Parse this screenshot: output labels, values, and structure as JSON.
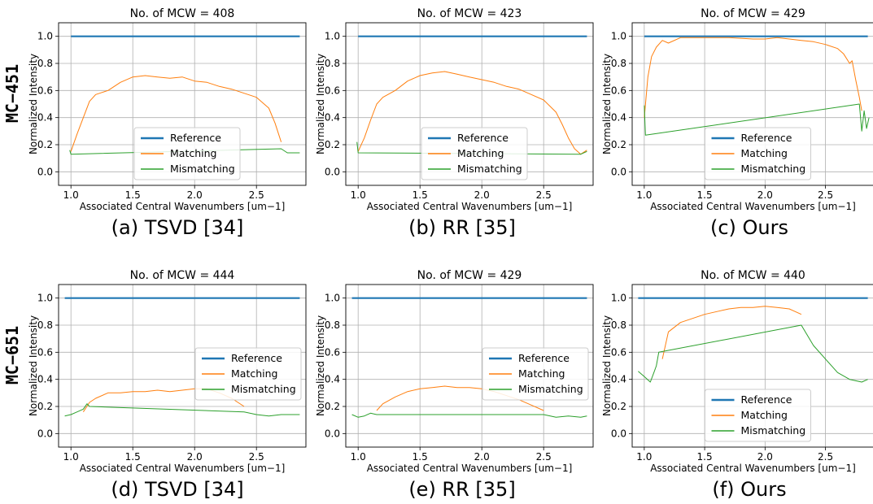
{
  "row_labels": [
    "MC−451",
    "MC−651"
  ],
  "captions": [
    "(a) TSVD [34]",
    "(b) RR [35]",
    "(c) Ours",
    "(d) TSVD [34]",
    "(e) RR [35]",
    "(f) Ours"
  ],
  "colors": {
    "reference": "#1f77b4",
    "matching": "#ff7f0e",
    "mismatching": "#2ca02c",
    "grid": "#b0b0b0"
  },
  "chart_data": [
    {
      "type": "line",
      "title": "No. of MCW = 408",
      "xlabel": "Associated Central Wavenumbers [um−1]",
      "ylabel": "Normalized Intensity",
      "xlim": [
        0.9,
        2.9
      ],
      "ylim": [
        -0.1,
        1.1
      ],
      "xticks": [
        "1.0",
        "1.5",
        "2.0",
        "2.5"
      ],
      "yticks": [
        "0.0",
        "0.2",
        "0.4",
        "0.6",
        "0.8",
        "1.0"
      ],
      "grid": true,
      "legend_position": "lower-center",
      "series": [
        {
          "name": "Reference",
          "x": [
            1.0,
            2.85
          ],
          "y": [
            1.0,
            1.0
          ]
        },
        {
          "name": "Matching",
          "x": [
            1.0,
            1.05,
            1.1,
            1.15,
            1.2,
            1.3,
            1.4,
            1.5,
            1.6,
            1.7,
            1.8,
            1.9,
            2.0,
            2.1,
            2.2,
            2.3,
            2.4,
            2.5,
            2.6,
            2.65,
            2.7
          ],
          "y": [
            0.15,
            0.28,
            0.4,
            0.52,
            0.57,
            0.6,
            0.66,
            0.7,
            0.71,
            0.7,
            0.69,
            0.7,
            0.67,
            0.66,
            0.63,
            0.61,
            0.58,
            0.55,
            0.47,
            0.36,
            0.22
          ]
        },
        {
          "name": "Mismatching",
          "x": [
            0.99,
            1.0,
            2.7,
            2.75,
            2.8,
            2.85
          ],
          "y": [
            0.16,
            0.13,
            0.17,
            0.14,
            0.14,
            0.14
          ]
        }
      ]
    },
    {
      "type": "line",
      "title": "No. of MCW = 423",
      "xlabel": "Associated Central Wavenumbers [um−1]",
      "ylabel": "Normalized Intensity",
      "xlim": [
        0.9,
        2.9
      ],
      "ylim": [
        -0.1,
        1.1
      ],
      "xticks": [
        "1.0",
        "1.5",
        "2.0",
        "2.5"
      ],
      "yticks": [
        "0.0",
        "0.2",
        "0.4",
        "0.6",
        "0.8",
        "1.0"
      ],
      "grid": true,
      "legend_position": "lower-center",
      "series": [
        {
          "name": "Reference",
          "x": [
            1.0,
            2.85
          ],
          "y": [
            1.0,
            1.0
          ]
        },
        {
          "name": "Matching",
          "x": [
            1.0,
            1.05,
            1.1,
            1.15,
            1.2,
            1.3,
            1.4,
            1.5,
            1.6,
            1.7,
            1.8,
            1.9,
            2.0,
            2.1,
            2.2,
            2.3,
            2.4,
            2.5,
            2.6,
            2.65,
            2.7,
            2.75,
            2.8,
            2.85
          ],
          "y": [
            0.15,
            0.25,
            0.38,
            0.5,
            0.55,
            0.6,
            0.67,
            0.71,
            0.73,
            0.74,
            0.72,
            0.7,
            0.68,
            0.66,
            0.63,
            0.61,
            0.57,
            0.53,
            0.44,
            0.35,
            0.25,
            0.17,
            0.13,
            0.16
          ]
        },
        {
          "name": "Mismatching",
          "x": [
            0.99,
            1.0,
            2.8,
            2.85
          ],
          "y": [
            0.22,
            0.14,
            0.13,
            0.15
          ]
        }
      ]
    },
    {
      "type": "line",
      "title": "No. of MCW = 429",
      "xlabel": "Associated Central Wavenumbers [um−1]",
      "ylabel": "Normalized Intensity",
      "xlim": [
        0.9,
        2.9
      ],
      "ylim": [
        -0.1,
        1.1
      ],
      "xticks": [
        "1.0",
        "1.5",
        "2.0",
        "2.5"
      ],
      "yticks": [
        "0.0",
        "0.2",
        "0.4",
        "0.6",
        "0.8",
        "1.0"
      ],
      "grid": true,
      "legend_position": "lower-center",
      "series": [
        {
          "name": "Reference",
          "x": [
            1.0,
            2.85
          ],
          "y": [
            1.0,
            1.0
          ]
        },
        {
          "name": "Matching",
          "x": [
            1.0,
            1.03,
            1.06,
            1.1,
            1.15,
            1.2,
            1.3,
            1.5,
            1.7,
            1.9,
            2.0,
            2.1,
            2.2,
            2.3,
            2.4,
            2.5,
            2.6,
            2.65,
            2.7,
            2.72,
            2.75,
            2.78,
            2.8
          ],
          "y": [
            0.4,
            0.7,
            0.85,
            0.92,
            0.97,
            0.95,
            0.99,
            0.99,
            0.99,
            0.98,
            0.98,
            0.99,
            0.98,
            0.97,
            0.96,
            0.94,
            0.91,
            0.87,
            0.8,
            0.82,
            0.68,
            0.55,
            0.45
          ]
        },
        {
          "name": "Mismatching",
          "x": [
            1.0,
            1.01,
            2.78,
            2.8,
            2.82,
            2.84,
            2.86
          ],
          "y": [
            0.49,
            0.27,
            0.5,
            0.3,
            0.45,
            0.32,
            0.4
          ]
        }
      ]
    },
    {
      "type": "line",
      "title": "No. of MCW = 444",
      "xlabel": "Associated Central Wavenumbers [um−1]",
      "ylabel": "Normalized Intensity",
      "xlim": [
        0.9,
        2.9
      ],
      "ylim": [
        -0.1,
        1.1
      ],
      "xticks": [
        "1.0",
        "1.5",
        "2.0",
        "2.5"
      ],
      "yticks": [
        "0.0",
        "0.2",
        "0.4",
        "0.6",
        "0.8",
        "1.0"
      ],
      "grid": true,
      "legend_position": "center-right",
      "series": [
        {
          "name": "Reference",
          "x": [
            0.95,
            2.85
          ],
          "y": [
            1.0,
            1.0
          ]
        },
        {
          "name": "Matching",
          "x": [
            1.1,
            1.15,
            1.2,
            1.3,
            1.4,
            1.5,
            1.6,
            1.7,
            1.8,
            1.9,
            2.0,
            2.1,
            2.2,
            2.3,
            2.4
          ],
          "y": [
            0.16,
            0.23,
            0.26,
            0.3,
            0.3,
            0.31,
            0.31,
            0.32,
            0.31,
            0.32,
            0.33,
            0.33,
            0.3,
            0.26,
            0.2
          ]
        },
        {
          "name": "Mismatching",
          "x": [
            0.95,
            1.0,
            1.05,
            1.1,
            1.13,
            1.15,
            2.4,
            2.5,
            2.6,
            2.7,
            2.8,
            2.85
          ],
          "y": [
            0.13,
            0.14,
            0.16,
            0.18,
            0.22,
            0.2,
            0.16,
            0.14,
            0.13,
            0.14,
            0.14,
            0.14
          ]
        }
      ]
    },
    {
      "type": "line",
      "title": "No. of MCW = 429",
      "xlabel": "Associated Central Wavenumbers [um−1]",
      "ylabel": "Normalized Intensity",
      "xlim": [
        0.9,
        2.9
      ],
      "ylim": [
        -0.1,
        1.1
      ],
      "xticks": [
        "1.0",
        "1.5",
        "2.0",
        "2.5"
      ],
      "yticks": [
        "0.0",
        "0.2",
        "0.4",
        "0.6",
        "0.8",
        "1.0"
      ],
      "grid": true,
      "legend_position": "center-right",
      "series": [
        {
          "name": "Reference",
          "x": [
            0.95,
            2.85
          ],
          "y": [
            1.0,
            1.0
          ]
        },
        {
          "name": "Matching",
          "x": [
            1.15,
            1.2,
            1.3,
            1.4,
            1.5,
            1.6,
            1.7,
            1.8,
            1.9,
            2.0,
            2.1,
            2.2,
            2.3,
            2.4,
            2.5
          ],
          "y": [
            0.17,
            0.22,
            0.27,
            0.31,
            0.33,
            0.34,
            0.35,
            0.34,
            0.34,
            0.33,
            0.31,
            0.28,
            0.25,
            0.21,
            0.17
          ]
        },
        {
          "name": "Mismatching",
          "x": [
            0.95,
            1.0,
            1.05,
            1.1,
            1.15,
            2.5,
            2.6,
            2.7,
            2.8,
            2.85
          ],
          "y": [
            0.14,
            0.12,
            0.13,
            0.15,
            0.14,
            0.14,
            0.12,
            0.13,
            0.12,
            0.13
          ]
        }
      ]
    },
    {
      "type": "line",
      "title": "No. of MCW = 440",
      "xlabel": "Associated Central Wavenumbers [um−1]",
      "ylabel": "Normalized Intensity",
      "xlim": [
        0.9,
        2.9
      ],
      "ylim": [
        -0.1,
        1.1
      ],
      "xticks": [
        "1.0",
        "1.5",
        "2.0",
        "2.5"
      ],
      "yticks": [
        "0.0",
        "0.2",
        "0.4",
        "0.6",
        "0.8",
        "1.0"
      ],
      "grid": true,
      "legend_position": "lower-center",
      "series": [
        {
          "name": "Reference",
          "x": [
            0.95,
            2.85
          ],
          "y": [
            1.0,
            1.0
          ]
        },
        {
          "name": "Matching",
          "x": [
            1.15,
            1.2,
            1.3,
            1.4,
            1.5,
            1.6,
            1.7,
            1.8,
            1.9,
            2.0,
            2.1,
            2.2,
            2.3
          ],
          "y": [
            0.55,
            0.75,
            0.82,
            0.85,
            0.88,
            0.9,
            0.92,
            0.93,
            0.93,
            0.94,
            0.93,
            0.92,
            0.88
          ]
        },
        {
          "name": "Mismatching",
          "x": [
            0.95,
            1.0,
            1.05,
            1.08,
            1.1,
            1.12,
            2.3,
            2.4,
            2.5,
            2.6,
            2.7,
            2.8,
            2.85
          ],
          "y": [
            0.46,
            0.42,
            0.38,
            0.45,
            0.5,
            0.6,
            0.8,
            0.65,
            0.55,
            0.45,
            0.4,
            0.38,
            0.4
          ]
        }
      ]
    }
  ]
}
